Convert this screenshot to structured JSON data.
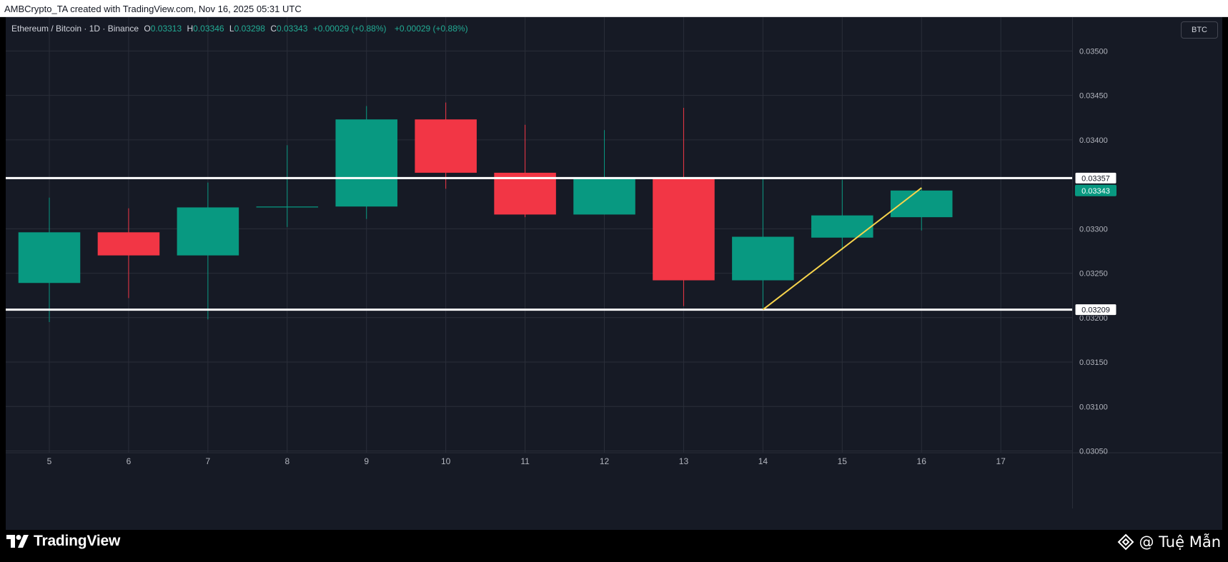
{
  "header": {
    "caption": "AMBCrypto_TA created with TradingView.com, Nov 16, 2025 05:31 UTC"
  },
  "legend": {
    "symbol": "Ethereum / Bitcoin · 1D · Binance",
    "open_label": "O",
    "open": "0.03313",
    "high_label": "H",
    "high": "0.03346",
    "low_label": "L",
    "low": "0.03298",
    "close_label": "C",
    "close": "0.03343",
    "change": "+0.00029 (+0.88%)",
    "change2": "+0.00029 (+0.88%)"
  },
  "currency_button": "BTC",
  "branding": {
    "logo_text": "TradingView",
    "watermark": "@ Tuệ Mẫn"
  },
  "colors": {
    "background": "#161a25",
    "grid": "#2a2e39",
    "up": "#089981",
    "down": "#f23645",
    "level_line": "#ffffff",
    "trendline": "#f7d44c",
    "axis_text": "#b2b5be"
  },
  "chart_data": {
    "type": "candlestick",
    "x_tick_labels": [
      "5",
      "6",
      "7",
      "8",
      "9",
      "10",
      "11",
      "12",
      "13",
      "14",
      "15",
      "16",
      "17"
    ],
    "y_tick_labels": [
      "0.03500",
      "0.03450",
      "0.03400",
      "0.03300",
      "0.03250",
      "0.03200",
      "0.03150",
      "0.03100",
      "0.03050"
    ],
    "y_ticks": [
      0.035,
      0.0345,
      0.034,
      0.033,
      0.0325,
      0.032,
      0.0315,
      0.031,
      0.0305
    ],
    "ylim": [
      0.03048,
      0.03522
    ],
    "x_range": [
      4.45,
      17.9
    ],
    "candles": [
      {
        "x": 5,
        "open": 0.03239,
        "high": 0.03335,
        "low": 0.03195,
        "close": 0.03296
      },
      {
        "x": 6,
        "open": 0.03296,
        "high": 0.03323,
        "low": 0.03222,
        "close": 0.0327
      },
      {
        "x": 7,
        "open": 0.0327,
        "high": 0.03352,
        "low": 0.03198,
        "close": 0.03324
      },
      {
        "x": 8,
        "open": 0.03324,
        "high": 0.03394,
        "low": 0.03302,
        "close": 0.03325
      },
      {
        "x": 9,
        "open": 0.03325,
        "high": 0.03438,
        "low": 0.03311,
        "close": 0.03423
      },
      {
        "x": 10,
        "open": 0.03423,
        "high": 0.03442,
        "low": 0.03345,
        "close": 0.03363
      },
      {
        "x": 11,
        "open": 0.03363,
        "high": 0.03417,
        "low": 0.03313,
        "close": 0.03316
      },
      {
        "x": 12,
        "open": 0.03316,
        "high": 0.03411,
        "low": 0.03316,
        "close": 0.03358
      },
      {
        "x": 13,
        "open": 0.03358,
        "high": 0.03436,
        "low": 0.03213,
        "close": 0.03242
      },
      {
        "x": 14,
        "open": 0.03242,
        "high": 0.03358,
        "low": 0.03211,
        "close": 0.03291
      },
      {
        "x": 15,
        "open": 0.0329,
        "high": 0.03355,
        "low": 0.03276,
        "close": 0.03315
      },
      {
        "x": 16,
        "open": 0.03313,
        "high": 0.03346,
        "low": 0.03298,
        "close": 0.03343
      }
    ],
    "horizontal_lines": [
      {
        "value": 0.03357,
        "label": "0.03357"
      },
      {
        "value": 0.03209,
        "label": "0.03209"
      }
    ],
    "last_price": {
      "value": 0.03343,
      "label": "0.03343"
    },
    "trendline": {
      "from": {
        "x": 14,
        "y": 0.03209
      },
      "to": {
        "x": 16,
        "y": 0.03346
      }
    },
    "grid": true
  }
}
